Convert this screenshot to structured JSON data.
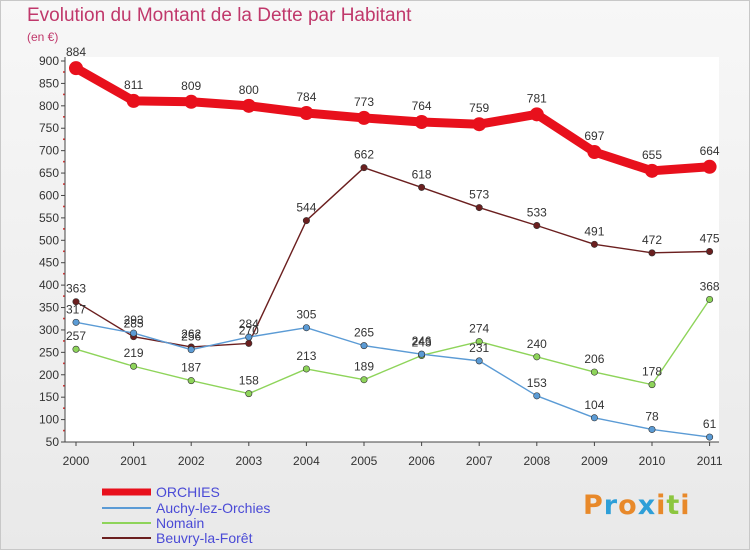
{
  "header": {
    "title": "Evolution du Montant de la Dette par Habitant",
    "unit": "(en €)"
  },
  "logo": {
    "text": "Proxiti",
    "colors": [
      "#e8892a",
      "#2e9fd8",
      "#e8892a",
      "#2e9fd8",
      "#e8892a",
      "#8cc63f",
      "#e8892a"
    ]
  },
  "chart_data": {
    "type": "line",
    "title": "Evolution du Montant de la Dette par Habitant",
    "unit": "(en €)",
    "x": [
      "2000",
      "2001",
      "2002",
      "2003",
      "2004",
      "2005",
      "2006",
      "2007",
      "2008",
      "2009",
      "2010",
      "2011"
    ],
    "ylim": [
      50,
      900
    ],
    "yticks": [
      50,
      100,
      150,
      200,
      250,
      300,
      350,
      400,
      450,
      500,
      550,
      600,
      650,
      700,
      750,
      800,
      850,
      900
    ],
    "grid": false,
    "legend_position": "bottom-left",
    "series": [
      {
        "name": "ORCHIES",
        "color": "#e8101c",
        "values": [
          884,
          811,
          809,
          800,
          784,
          773,
          764,
          759,
          781,
          697,
          655,
          664
        ]
      },
      {
        "name": "Auchy-lez-Orchies",
        "color": "#5b9bd5",
        "values": [
          317,
          293,
          256,
          284,
          305,
          265,
          246,
          231,
          153,
          104,
          78,
          61
        ]
      },
      {
        "name": "Nomain",
        "color": "#8ed45a",
        "values": [
          257,
          219,
          187,
          158,
          213,
          189,
          243,
          274,
          240,
          206,
          178,
          368
        ]
      },
      {
        "name": "Beuvry-la-Forêt",
        "color": "#6b1f1f",
        "values": [
          363,
          285,
          262,
          270,
          544,
          662,
          618,
          573,
          533,
          491,
          472,
          475
        ]
      }
    ]
  }
}
